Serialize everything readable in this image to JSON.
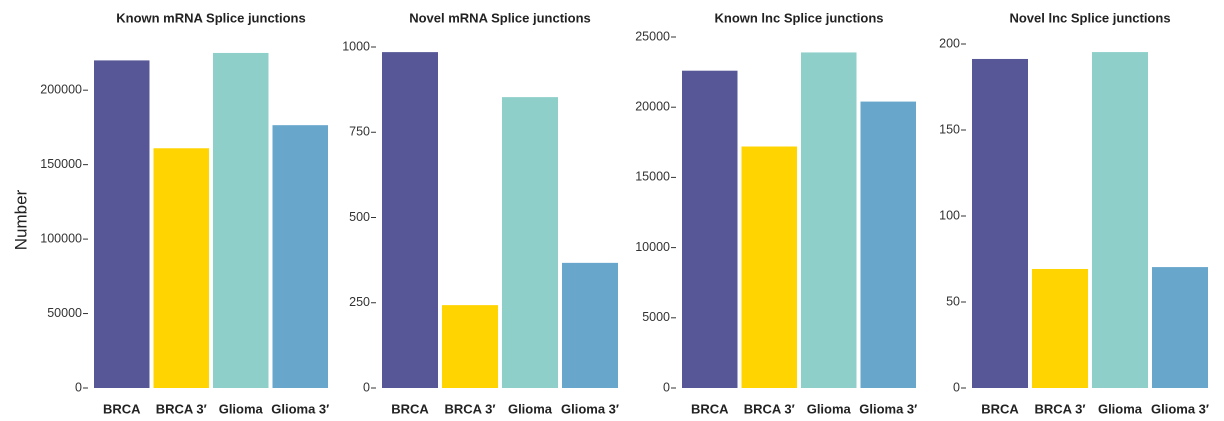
{
  "chart_data": [
    {
      "type": "bar",
      "title": "Known mRNA Splice junctions",
      "ylabel": "Number",
      "categories": [
        "BRCA",
        "BRCA 3′",
        "Glioma",
        "Glioma 3′"
      ],
      "values": [
        220000,
        161000,
        225000,
        176500
      ],
      "colors": [
        "#575797",
        "#FFD400",
        "#8ECFCA",
        "#68A6CB"
      ],
      "ylim": [
        0,
        229000
      ],
      "yticks": [
        0,
        50000,
        100000,
        150000,
        200000
      ]
    },
    {
      "type": "bar",
      "title": "Novel mRNA Splice junctions",
      "categories": [
        "BRCA",
        "BRCA 3′",
        "Glioma",
        "Glioma 3′"
      ],
      "values": [
        985,
        243,
        853,
        367
      ],
      "colors": [
        "#575797",
        "#FFD400",
        "#8ECFCA",
        "#68A6CB"
      ],
      "ylim": [
        0,
        1000
      ],
      "yticks": [
        0,
        250,
        500,
        750,
        1000
      ]
    },
    {
      "type": "bar",
      "title": "Known lnc Splice junctions",
      "categories": [
        "BRCA",
        "BRCA 3′",
        "Glioma",
        "Glioma 3′"
      ],
      "values": [
        22600,
        17200,
        23900,
        20400
      ],
      "colors": [
        "#575797",
        "#FFD400",
        "#8ECFCA",
        "#68A6CB"
      ],
      "ylim": [
        0,
        25000
      ],
      "yticks": [
        0,
        5000,
        10000,
        15000,
        20000,
        25000
      ]
    },
    {
      "type": "bar",
      "title": "Novel lnc Splice junctions",
      "categories": [
        "BRCA",
        "BRCA 3′",
        "Glioma",
        "Glioma 3′"
      ],
      "values": [
        191.3,
        69.2,
        195.3,
        70.3
      ],
      "colors": [
        "#575797",
        "#FFD400",
        "#8ECFCA",
        "#68A6CB"
      ],
      "ylim": [
        0,
        200
      ],
      "yticks": [
        0,
        50,
        100,
        150,
        200
      ]
    }
  ]
}
